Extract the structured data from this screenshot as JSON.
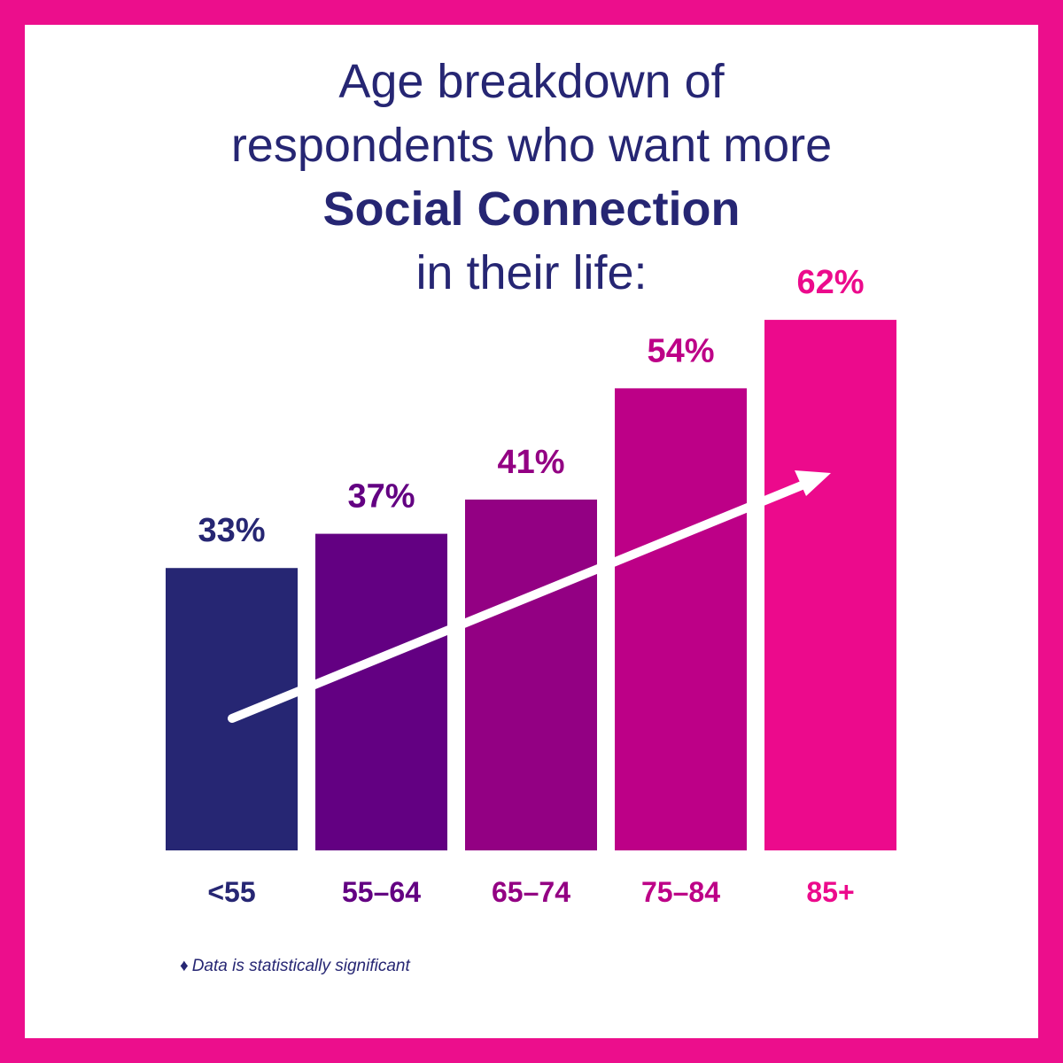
{
  "title": {
    "line1": "Age breakdown of",
    "line2": "respondents who want more",
    "line3": "Social Connection",
    "line4": "in their life:"
  },
  "footnote": {
    "marker": "♦",
    "text": "Data is statistically significant"
  },
  "colors": {
    "border": "#ec0e8c",
    "title": "#262673",
    "arrow": "#ffffff"
  },
  "chart_data": {
    "type": "bar",
    "title": "Age breakdown of respondents who want more Social Connection in their life:",
    "categories": [
      "<55",
      "55–64",
      "65–74",
      "75–84",
      "85+"
    ],
    "values": [
      33,
      37,
      41,
      54,
      62
    ],
    "value_labels": [
      "33%",
      "37%",
      "41%",
      "54%",
      "62%"
    ],
    "bar_colors": [
      "#262673",
      "#630082",
      "#930083",
      "#bd0087",
      "#ec0a8c"
    ],
    "label_colors": [
      "#262673",
      "#630082",
      "#930083",
      "#bd0087",
      "#ec0a8c"
    ],
    "xlabel": "",
    "ylabel": "",
    "ylim": [
      0,
      100
    ],
    "grid": false,
    "legend": "none",
    "annotations": [
      "upward trend arrow"
    ]
  }
}
